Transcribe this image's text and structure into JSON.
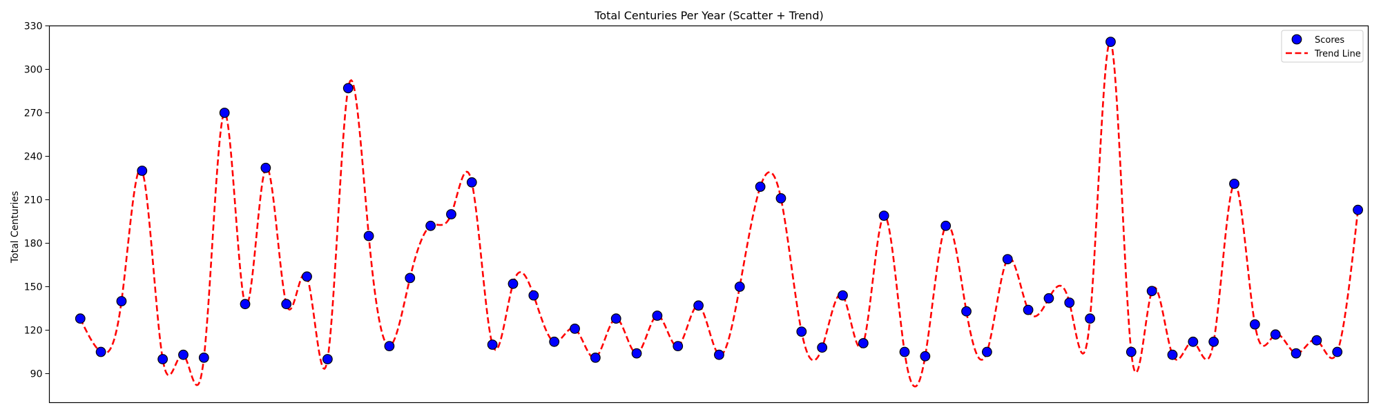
{
  "chart_data": {
    "type": "scatter",
    "title": "Total Centuries Per Year (Scatter + Trend)",
    "xlabel": "",
    "ylabel": "Total Centuries",
    "xlim": [
      -1.5,
      62.5
    ],
    "ylim": [
      70,
      330
    ],
    "yticks": [
      90,
      120,
      150,
      180,
      210,
      240,
      270,
      300,
      330
    ],
    "grid": false,
    "legend_position": "top-right",
    "series": [
      {
        "name": "Scores",
        "kind": "scatter",
        "color": "#0000ff",
        "edgecolor": "#000000",
        "values": [
          128,
          105,
          140,
          230,
          100,
          103,
          101,
          270,
          138,
          232,
          138,
          157,
          100,
          287,
          185,
          109,
          156,
          192,
          200,
          222,
          110,
          152,
          144,
          112,
          121,
          101,
          128,
          104,
          130,
          109,
          137,
          103,
          150,
          219,
          211,
          119,
          108,
          144,
          111,
          199,
          105,
          102,
          192,
          133,
          105,
          169,
          134,
          142,
          139,
          128,
          319,
          105,
          147,
          103,
          112,
          112,
          221,
          124,
          117,
          104,
          113,
          105,
          203
        ]
      },
      {
        "name": "Trend Line",
        "kind": "line",
        "style": "dashed",
        "color": "#ff0000",
        "smoothing": "cubic-spline"
      }
    ]
  }
}
